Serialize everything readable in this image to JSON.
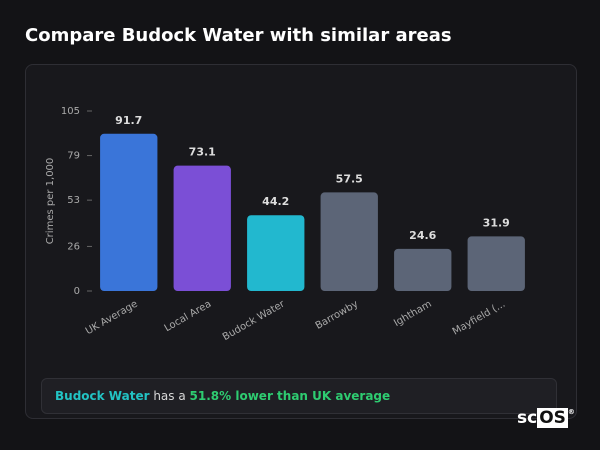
{
  "header": {
    "title": "Compare Budock Water with similar areas"
  },
  "chart_data": {
    "type": "bar",
    "y_label": "Crimes per 1,000",
    "categories": [
      "UK Average",
      "Local Area",
      "Budock Water",
      "Barrowby",
      "Ightham",
      "Mayfield (..."
    ],
    "values": [
      91.7,
      73.1,
      44.2,
      57.5,
      24.6,
      31.9
    ],
    "colors": [
      "#3a75d9",
      "#7b4fd6",
      "#22b8cf",
      "#5c6577",
      "#5c6577",
      "#5c6577"
    ],
    "ylim": [
      0,
      105
    ],
    "yticks": [
      0,
      26,
      53,
      79,
      105
    ]
  },
  "note": {
    "area": "Budock Water",
    "text": "has a",
    "highlight": "51.8% lower than UK average"
  },
  "logo": {
    "left": "sc",
    "right": "OS",
    "mark": "®"
  }
}
